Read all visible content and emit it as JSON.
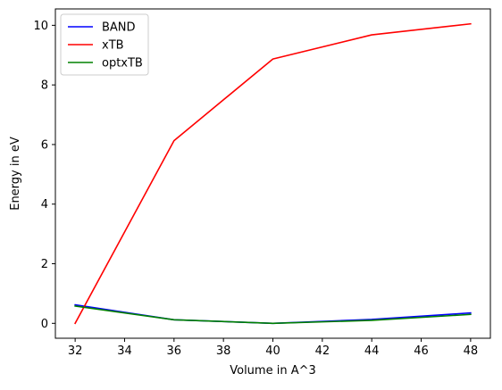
{
  "chart_data": {
    "type": "line",
    "title": "",
    "xlabel": "Volume in A^3",
    "ylabel": "Energy in eV",
    "xlim": [
      31.2,
      48.8
    ],
    "ylim": [
      -0.5,
      10.55
    ],
    "xticks": [
      32,
      34,
      36,
      38,
      40,
      42,
      44,
      46,
      48
    ],
    "yticks": [
      0,
      2,
      4,
      6,
      8,
      10
    ],
    "grid": false,
    "legend_position": "top-left",
    "x": [
      32,
      36,
      40,
      44,
      48
    ],
    "series": [
      {
        "name": "BAND",
        "color": "#0000ff",
        "values": [
          0.62,
          0.12,
          0.0,
          0.13,
          0.35
        ]
      },
      {
        "name": "xTB",
        "color": "#ff0000",
        "values": [
          0.0,
          6.13,
          8.87,
          9.68,
          10.05
        ]
      },
      {
        "name": "optxTB",
        "color": "#008000",
        "values": [
          0.58,
          0.12,
          0.0,
          0.1,
          0.3
        ]
      }
    ]
  }
}
